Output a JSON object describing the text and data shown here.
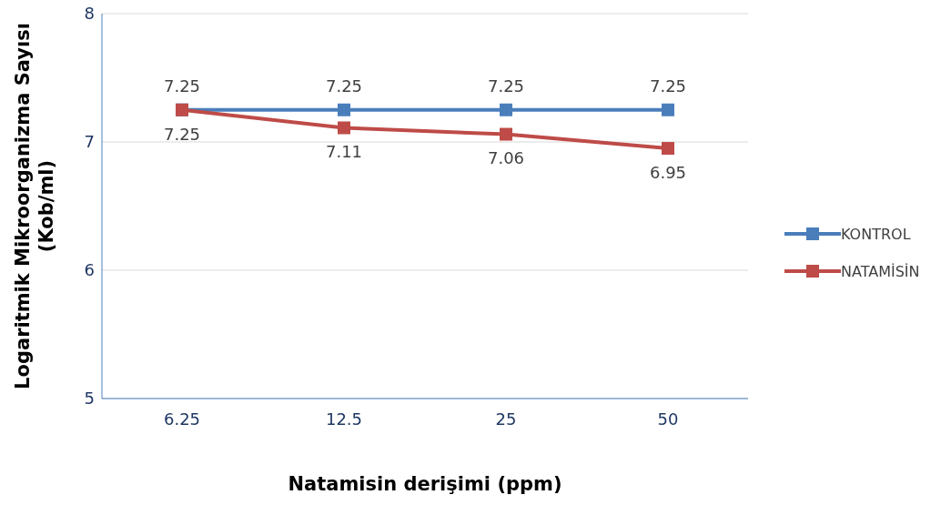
{
  "chart_data": {
    "type": "line",
    "xlabel": "Natamisin derişimi (ppm)",
    "ylabel": "Logaritmik Mikroorganizma Sayısı (Kob/ml)",
    "categories": [
      "6.25",
      "12.5",
      "25",
      "50"
    ],
    "series": [
      {
        "name": "KONTROL",
        "color": "#4a7ebb",
        "values": [
          7.25,
          7.25,
          7.25,
          7.25
        ]
      },
      {
        "name": "NATAMİSİN",
        "color": "#be4b48",
        "values": [
          7.25,
          7.11,
          7.06,
          6.95
        ]
      }
    ],
    "ylim": [
      5,
      8
    ],
    "yticks": [
      5,
      6,
      7,
      8
    ],
    "grid": "y",
    "legend": "right",
    "marker": "square",
    "line_style": "solid",
    "data_labels": true
  }
}
